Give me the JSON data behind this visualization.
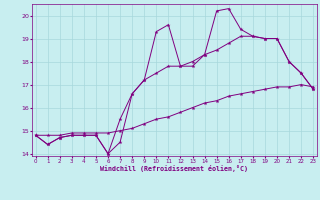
{
  "xlabel": "Windchill (Refroidissement éolien,°C)",
  "bg_color": "#c8eef0",
  "line_color": "#800080",
  "grid_color": "#a8d8dc",
  "x_data": [
    0,
    1,
    2,
    3,
    4,
    5,
    6,
    7,
    8,
    9,
    10,
    11,
    12,
    13,
    14,
    15,
    16,
    17,
    18,
    19,
    20,
    21,
    22,
    23
  ],
  "series1": [
    14.8,
    14.4,
    14.7,
    14.8,
    14.8,
    14.8,
    14.0,
    14.5,
    16.6,
    17.2,
    19.3,
    19.6,
    17.8,
    17.8,
    18.3,
    20.2,
    20.3,
    19.4,
    19.1,
    19.0,
    19.0,
    18.0,
    17.5,
    16.8
  ],
  "series2": [
    14.8,
    14.4,
    14.7,
    14.8,
    14.8,
    14.8,
    14.0,
    15.5,
    16.6,
    17.2,
    17.5,
    17.8,
    17.8,
    18.0,
    18.3,
    18.5,
    18.8,
    19.1,
    19.1,
    19.0,
    19.0,
    18.0,
    17.5,
    16.8
  ],
  "series3": [
    14.8,
    14.8,
    14.8,
    14.9,
    14.9,
    14.9,
    14.9,
    15.0,
    15.1,
    15.3,
    15.5,
    15.6,
    15.8,
    16.0,
    16.2,
    16.3,
    16.5,
    16.6,
    16.7,
    16.8,
    16.9,
    16.9,
    17.0,
    16.9
  ],
  "ylim": [
    13.9,
    20.5
  ],
  "xlim": [
    -0.3,
    23.3
  ],
  "yticks": [
    14,
    15,
    16,
    17,
    18,
    19,
    20
  ],
  "xticks": [
    0,
    1,
    2,
    3,
    4,
    5,
    6,
    7,
    8,
    9,
    10,
    11,
    12,
    13,
    14,
    15,
    16,
    17,
    18,
    19,
    20,
    21,
    22,
    23
  ]
}
